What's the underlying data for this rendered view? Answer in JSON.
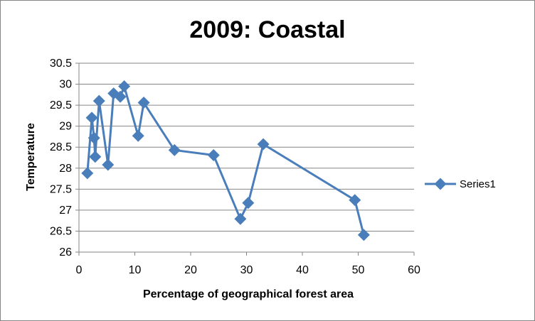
{
  "chart_data": {
    "type": "scatter",
    "title": "2009: Coastal",
    "xlabel": "Percentage of geographical forest area",
    "ylabel": "Temperature",
    "xlim": [
      0,
      60
    ],
    "ylim": [
      26,
      30.5
    ],
    "x_ticks": [
      0,
      10,
      20,
      30,
      40,
      50,
      60
    ],
    "y_ticks": [
      26,
      26.5,
      27,
      27.5,
      28,
      28.5,
      29,
      29.5,
      30,
      30.5
    ],
    "x_tick_labels": [
      "0",
      "10",
      "20",
      "30",
      "40",
      "50",
      "60"
    ],
    "y_tick_labels": [
      "26",
      "26.5",
      "27",
      "27.5",
      "28",
      "28.5",
      "29",
      "29.5",
      "30",
      "30.5"
    ],
    "grid": "horizontal",
    "legend_position": "right",
    "series": [
      {
        "name": "Series1",
        "color": "#4a7ebb",
        "marker": "diamond",
        "points": [
          [
            1.5,
            27.88
          ],
          [
            2.3,
            29.2
          ],
          [
            2.7,
            28.72
          ],
          [
            2.9,
            28.27
          ],
          [
            3.6,
            29.6
          ],
          [
            5.2,
            28.08
          ],
          [
            6.2,
            29.78
          ],
          [
            7.4,
            29.7
          ],
          [
            8.1,
            29.95
          ],
          [
            10.6,
            28.77
          ],
          [
            11.6,
            29.56
          ],
          [
            17.1,
            28.43
          ],
          [
            24.1,
            28.31
          ],
          [
            28.9,
            26.79
          ],
          [
            30.3,
            27.17
          ],
          [
            33.0,
            28.57
          ],
          [
            49.4,
            27.24
          ],
          [
            51.0,
            26.41
          ]
        ]
      }
    ]
  }
}
